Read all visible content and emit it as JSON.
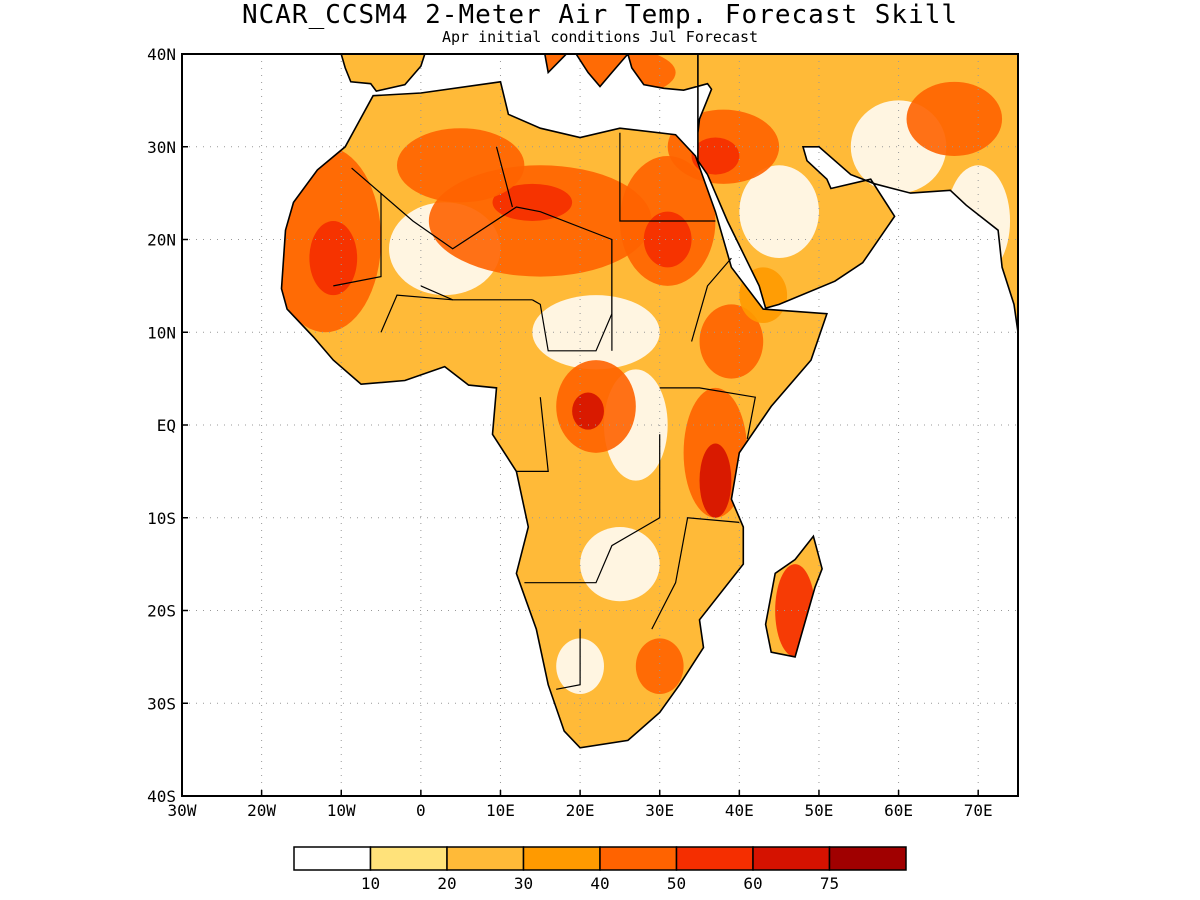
{
  "title": "NCAR_CCSM4 2-Meter Air Temp. Forecast Skill",
  "subtitle": "Apr initial conditions  Jul Forecast",
  "map": {
    "lon_range": [
      -30,
      75
    ],
    "lat_range": [
      -40,
      40
    ],
    "lat_ticks": [
      {
        "value": 40,
        "label": "40N"
      },
      {
        "value": 30,
        "label": "30N"
      },
      {
        "value": 20,
        "label": "20N"
      },
      {
        "value": 10,
        "label": "10N"
      },
      {
        "value": 0,
        "label": "EQ"
      },
      {
        "value": -10,
        "label": "10S"
      },
      {
        "value": -20,
        "label": "20S"
      },
      {
        "value": -30,
        "label": "30S"
      },
      {
        "value": -40,
        "label": "40S"
      }
    ],
    "lon_ticks": [
      {
        "value": -30,
        "label": "30W"
      },
      {
        "value": -20,
        "label": "20W"
      },
      {
        "value": -10,
        "label": "10W"
      },
      {
        "value": 0,
        "label": "0"
      },
      {
        "value": 10,
        "label": "10E"
      },
      {
        "value": 20,
        "label": "20E"
      },
      {
        "value": 30,
        "label": "30E"
      },
      {
        "value": 40,
        "label": "40E"
      },
      {
        "value": 50,
        "label": "50E"
      },
      {
        "value": 60,
        "label": "60E"
      },
      {
        "value": 70,
        "label": "70E"
      }
    ]
  },
  "colorbar": {
    "colors": [
      "#ffffff",
      "#ffe27a",
      "#ffba38",
      "#ff9a00",
      "#ff6300",
      "#f52e00",
      "#d51200",
      "#a00000"
    ],
    "labels": [
      "10",
      "20",
      "30",
      "40",
      "50",
      "60",
      "75"
    ]
  },
  "skill_regions": [
    {
      "level": 4,
      "lon": -12,
      "lat": 20,
      "rx": 7,
      "ry": 10
    },
    {
      "level": 5,
      "lon": -11,
      "lat": 18,
      "rx": 3,
      "ry": 4
    },
    {
      "level": 4,
      "lon": 15,
      "lat": 22,
      "rx": 14,
      "ry": 6
    },
    {
      "level": 5,
      "lon": 14,
      "lat": 24,
      "rx": 5,
      "ry": 2
    },
    {
      "level": 4,
      "lon": 31,
      "lat": 22,
      "rx": 6,
      "ry": 7
    },
    {
      "level": 5,
      "lon": 31,
      "lat": 20,
      "rx": 3,
      "ry": 3
    },
    {
      "level": 4,
      "lon": 38,
      "lat": 30,
      "rx": 7,
      "ry": 4
    },
    {
      "level": 5,
      "lon": 37,
      "lat": 29,
      "rx": 3,
      "ry": 2
    },
    {
      "level": 4,
      "lon": 5,
      "lat": 28,
      "rx": 8,
      "ry": 4
    },
    {
      "level": 4,
      "lon": 22,
      "lat": 2,
      "rx": 5,
      "ry": 5
    },
    {
      "level": 6,
      "lon": 21,
      "lat": 1.5,
      "rx": 2,
      "ry": 2
    },
    {
      "level": 4,
      "lon": 37,
      "lat": -3,
      "rx": 4,
      "ry": 7
    },
    {
      "level": 6,
      "lon": 37,
      "lat": -6,
      "rx": 2,
      "ry": 4
    },
    {
      "level": 4,
      "lon": 39,
      "lat": 9,
      "rx": 4,
      "ry": 4
    },
    {
      "level": 5,
      "lon": 47,
      "lat": -20,
      "rx": 2.5,
      "ry": 5
    },
    {
      "level": 4,
      "lon": 30,
      "lat": -26,
      "rx": 3,
      "ry": 3
    },
    {
      "level": 4,
      "lon": 67,
      "lat": 33,
      "rx": 6,
      "ry": 4
    },
    {
      "level": 4,
      "lon": 22,
      "lat": 38,
      "rx": 10,
      "ry": 3
    },
    {
      "level": 3,
      "lon": 43,
      "lat": 14,
      "rx": 3,
      "ry": 3
    }
  ]
}
